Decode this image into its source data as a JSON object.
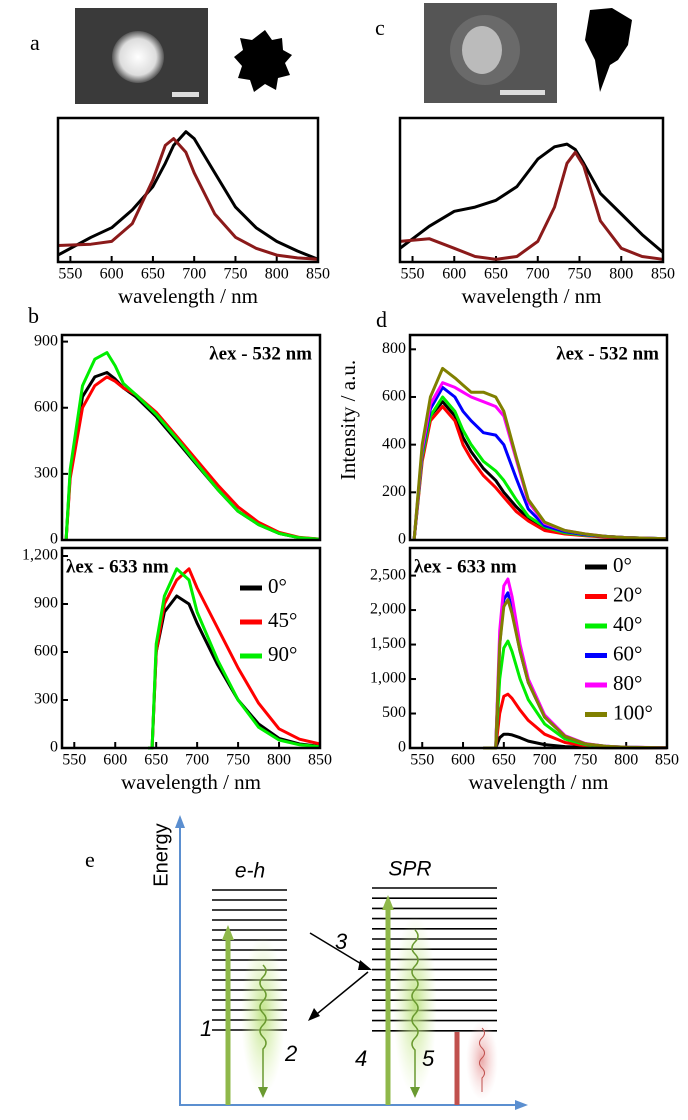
{
  "chart_data": [
    {
      "type": "line",
      "panel": "a",
      "xlabel": "wavelength / nm",
      "x": [
        535,
        575,
        600,
        625,
        650,
        665,
        675,
        690,
        700,
        725,
        750,
        775,
        800,
        825,
        850
      ],
      "xlim": [
        535,
        850
      ],
      "ylim": [
        0,
        1.05
      ],
      "xticks": [
        550,
        600,
        650,
        700,
        750,
        800,
        850
      ],
      "series": [
        {
          "color": "#000000",
          "values": [
            0.05,
            0.18,
            0.25,
            0.38,
            0.55,
            0.72,
            0.85,
            0.95,
            0.9,
            0.65,
            0.4,
            0.25,
            0.15,
            0.08,
            0.02
          ]
        },
        {
          "color": "#8b1a1a",
          "values": [
            0.12,
            0.13,
            0.15,
            0.28,
            0.6,
            0.85,
            0.9,
            0.8,
            0.65,
            0.35,
            0.18,
            0.1,
            0.05,
            0.03,
            0.02
          ]
        }
      ]
    },
    {
      "type": "line",
      "panel": "c",
      "xlabel": "wavelength / nm",
      "x": [
        535,
        570,
        600,
        625,
        650,
        675,
        700,
        720,
        735,
        745,
        755,
        775,
        800,
        825,
        850
      ],
      "xlim": [
        535,
        850
      ],
      "ylim": [
        0,
        1.05
      ],
      "xticks": [
        550,
        600,
        650,
        700,
        750,
        800,
        850
      ],
      "series": [
        {
          "color": "#000000",
          "values": [
            0.1,
            0.26,
            0.37,
            0.4,
            0.45,
            0.55,
            0.75,
            0.84,
            0.86,
            0.82,
            0.72,
            0.5,
            0.35,
            0.2,
            0.07
          ]
        },
        {
          "color": "#8b1a1a",
          "values": [
            0.15,
            0.17,
            0.1,
            0.04,
            0.02,
            0.04,
            0.15,
            0.4,
            0.72,
            0.8,
            0.7,
            0.3,
            0.1,
            0.04,
            0.02
          ]
        }
      ]
    },
    {
      "type": "line",
      "panel": "b",
      "annotation": "λex - 532 nm",
      "x": [
        540,
        545,
        560,
        575,
        590,
        600,
        610,
        625,
        650,
        675,
        700,
        725,
        750,
        775,
        800,
        825,
        850
      ],
      "xlim": [
        535,
        850
      ],
      "ylim": [
        0,
        930
      ],
      "yticks": [
        0,
        300,
        600,
        900
      ],
      "series": [
        {
          "color": "#000000",
          "values": [
            0,
            300,
            650,
            740,
            760,
            730,
            690,
            650,
            560,
            450,
            340,
            230,
            130,
            70,
            30,
            10,
            3
          ]
        },
        {
          "color": "#ff0000",
          "values": [
            0,
            280,
            600,
            700,
            740,
            720,
            690,
            660,
            580,
            470,
            360,
            250,
            150,
            80,
            35,
            12,
            4
          ]
        },
        {
          "color": "#00ee00",
          "values": [
            0,
            320,
            700,
            820,
            850,
            790,
            710,
            660,
            570,
            460,
            345,
            230,
            130,
            70,
            30,
            10,
            3
          ]
        }
      ]
    },
    {
      "type": "line",
      "annotation": "λex - 633 nm",
      "xlabel": "wavelength / nm",
      "x": [
        640,
        645,
        650,
        660,
        675,
        690,
        700,
        725,
        750,
        775,
        800,
        825,
        850
      ],
      "xlim": [
        535,
        850
      ],
      "ylim": [
        0,
        1250
      ],
      "xticks": [
        550,
        600,
        650,
        700,
        750,
        800,
        850
      ],
      "yticks": [
        0,
        300,
        600,
        900,
        {
          "value": 1200,
          "label": "1,200"
        }
      ],
      "legend": "right",
      "series": [
        {
          "name": "0°",
          "color": "#000000",
          "values": [
            0,
            0,
            600,
            850,
            950,
            900,
            780,
            520,
            300,
            150,
            60,
            25,
            10
          ]
        },
        {
          "name": "45°",
          "color": "#ff0000",
          "values": [
            0,
            0,
            600,
            900,
            1050,
            1120,
            1000,
            750,
            500,
            280,
            120,
            55,
            25
          ]
        },
        {
          "name": "90°",
          "color": "#00ee00",
          "values": [
            0,
            0,
            650,
            950,
            1120,
            1050,
            850,
            550,
            300,
            130,
            50,
            20,
            8
          ]
        }
      ]
    },
    {
      "type": "line",
      "panel": "d",
      "annotation": "λex - 532 nm",
      "ylabel": "Intensity / a.u.",
      "x": [
        540,
        550,
        560,
        575,
        590,
        600,
        610,
        625,
        640,
        650,
        665,
        680,
        700,
        725,
        750,
        775,
        800,
        850
      ],
      "xlim": [
        535,
        850
      ],
      "ylim": [
        0,
        860
      ],
      "yticks": [
        0,
        200,
        400,
        600,
        800
      ],
      "series": [
        {
          "color": "#000000",
          "values": [
            0,
            350,
            520,
            580,
            520,
            430,
            370,
            300,
            250,
            200,
            140,
            90,
            50,
            30,
            20,
            15,
            10,
            5
          ]
        },
        {
          "color": "#ff0000",
          "values": [
            0,
            330,
            500,
            560,
            500,
            400,
            340,
            270,
            220,
            180,
            120,
            80,
            40,
            25,
            18,
            12,
            8,
            5
          ]
        },
        {
          "color": "#00ee00",
          "values": [
            0,
            350,
            520,
            600,
            540,
            460,
            400,
            330,
            290,
            250,
            170,
            100,
            55,
            30,
            20,
            15,
            10,
            5
          ]
        },
        {
          "color": "#0000ff",
          "values": [
            0,
            370,
            550,
            640,
            600,
            540,
            500,
            450,
            440,
            400,
            260,
            130,
            60,
            35,
            22,
            15,
            10,
            5
          ]
        },
        {
          "color": "#ff00ff",
          "values": [
            0,
            380,
            570,
            660,
            640,
            620,
            600,
            580,
            560,
            520,
            340,
            160,
            70,
            40,
            25,
            15,
            10,
            5
          ]
        },
        {
          "color": "#808000",
          "values": [
            0,
            400,
            600,
            720,
            680,
            650,
            620,
            620,
            600,
            540,
            350,
            170,
            75,
            40,
            25,
            15,
            10,
            5
          ]
        }
      ]
    },
    {
      "type": "line",
      "annotation": "λex - 633 nm",
      "xlabel": "wavelength / nm",
      "x": [
        625,
        640,
        645,
        650,
        655,
        660,
        670,
        680,
        700,
        725,
        750,
        775,
        800,
        850
      ],
      "xlim": [
        535,
        850
      ],
      "ylim": [
        0,
        2900
      ],
      "xticks": [
        550,
        600,
        650,
        700,
        750,
        800,
        850
      ],
      "yticks": [
        0,
        500,
        {
          "value": 1000,
          "label": "1,000"
        },
        {
          "value": 1500,
          "label": "1,500"
        },
        {
          "value": 2000,
          "label": "2,000"
        },
        {
          "value": 2500,
          "label": "2,500"
        }
      ],
      "legend": "right",
      "series": [
        {
          "name": "0°",
          "color": "#000000",
          "values": [
            0,
            0,
            150,
            200,
            200,
            190,
            150,
            100,
            50,
            20,
            10,
            5,
            3,
            2
          ]
        },
        {
          "name": "20°",
          "color": "#ff0000",
          "values": [
            0,
            0,
            500,
            750,
            780,
            720,
            550,
            400,
            200,
            80,
            30,
            15,
            8,
            3
          ]
        },
        {
          "name": "40°",
          "color": "#00ee00",
          "values": [
            0,
            0,
            1000,
            1450,
            1550,
            1400,
            1000,
            700,
            350,
            130,
            50,
            20,
            10,
            4
          ]
        },
        {
          "name": "60°",
          "color": "#0000ff",
          "values": [
            0,
            0,
            1500,
            2150,
            2250,
            2000,
            1400,
            950,
            450,
            170,
            60,
            25,
            10,
            4
          ]
        },
        {
          "name": "80°",
          "color": "#ff00ff",
          "values": [
            0,
            0,
            1700,
            2350,
            2450,
            2200,
            1500,
            1000,
            480,
            180,
            65,
            25,
            12,
            5
          ]
        },
        {
          "name": "100°",
          "color": "#808000",
          "values": [
            0,
            0,
            1500,
            2050,
            2150,
            1950,
            1400,
            950,
            450,
            170,
            60,
            25,
            10,
            4
          ]
        }
      ]
    }
  ],
  "diagram": {
    "panel": "e",
    "axis_label": "Energy",
    "states": [
      "e-h",
      "SPR"
    ],
    "steps": [
      "1",
      "2",
      "3",
      "4",
      "5"
    ]
  }
}
